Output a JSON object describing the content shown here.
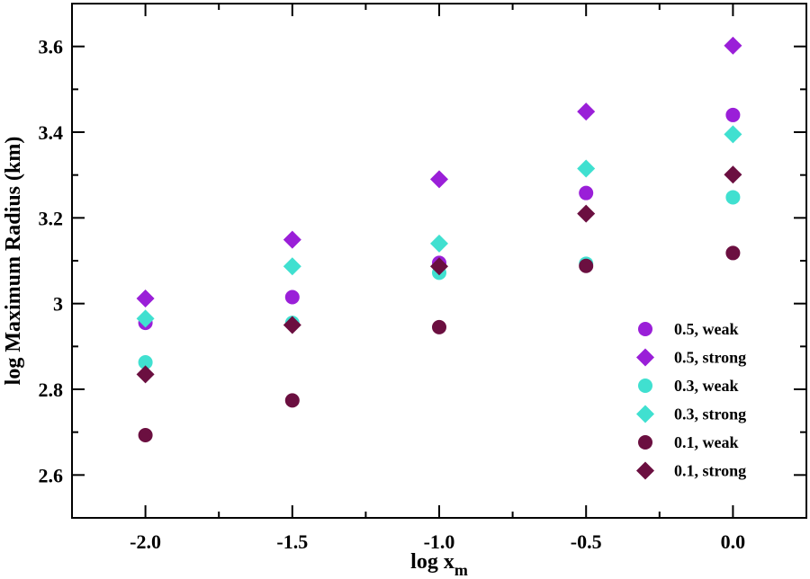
{
  "chart_data": {
    "type": "scatter",
    "xlabel": "log x",
    "xlabel_subscript": "m",
    "ylabel": "log Maximum Radius (km)",
    "xlim": [
      -2.25,
      0.25
    ],
    "ylim": [
      2.5,
      3.7
    ],
    "x_ticks": [
      -2.0,
      -1.5,
      -1.0,
      -0.5,
      0.0
    ],
    "x_tick_labels": [
      "-2.0",
      "-1.5",
      "-1.0",
      "-0.5",
      "0.0"
    ],
    "y_ticks": [
      2.6,
      2.8,
      3.0,
      3.2,
      3.4,
      3.6
    ],
    "y_tick_labels": [
      "2.6",
      "2.8",
      "3",
      "3.2",
      "3.4",
      "3.6"
    ],
    "grid": false,
    "legend_position": "bottom-right",
    "series": [
      {
        "name": "0.5, weak",
        "marker": "circle",
        "color": "#9a1fd8",
        "x": [
          -2.0,
          -1.5,
          -1.0,
          -0.5,
          0.0
        ],
        "y": [
          2.955,
          3.015,
          3.095,
          3.258,
          3.44
        ]
      },
      {
        "name": "0.5, strong",
        "marker": "diamond",
        "color": "#9a1fd8",
        "x": [
          -2.0,
          -1.5,
          -1.0,
          -0.5,
          0.0
        ],
        "y": [
          3.012,
          3.149,
          3.29,
          3.448,
          3.602
        ]
      },
      {
        "name": "0.3, weak",
        "marker": "circle",
        "color": "#40e0d0",
        "x": [
          -2.0,
          -1.5,
          -1.0,
          -0.5,
          0.0
        ],
        "y": [
          2.863,
          2.955,
          3.072,
          3.093,
          3.248
        ]
      },
      {
        "name": "0.3, strong",
        "marker": "diamond",
        "color": "#40e0d0",
        "x": [
          -2.0,
          -1.5,
          -1.0,
          -0.5,
          0.0
        ],
        "y": [
          2.965,
          3.087,
          3.14,
          3.315,
          3.395
        ]
      },
      {
        "name": "0.1, weak",
        "marker": "circle",
        "color": "#6b0f40",
        "x": [
          -2.0,
          -1.5,
          -1.0,
          -0.5,
          0.0
        ],
        "y": [
          2.693,
          2.774,
          2.945,
          3.088,
          3.118
        ]
      },
      {
        "name": "0.1, strong",
        "marker": "diamond",
        "color": "#6b0f40",
        "x": [
          -2.0,
          -1.5,
          -1.0,
          -0.5,
          0.0
        ],
        "y": [
          2.835,
          2.95,
          3.087,
          3.21,
          3.301
        ]
      }
    ]
  }
}
